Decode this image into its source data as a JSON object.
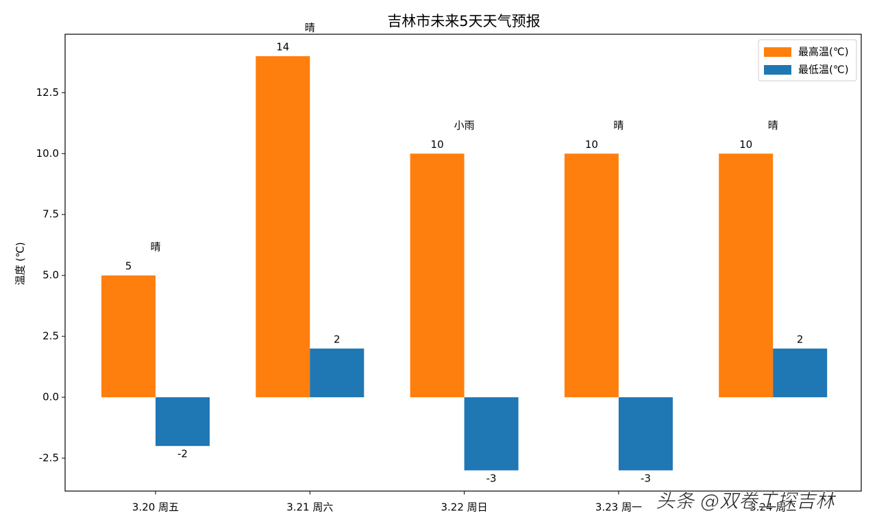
{
  "chart_data": {
    "type": "bar",
    "title": "吉林市未来5天天气预报",
    "y_label": "温度 (℃)",
    "categories": [
      "3.20 周五",
      "3.21 周六",
      "3.22 周日",
      "3.23 周一",
      "3.24 周二"
    ],
    "series": [
      {
        "name": "最高温(℃)",
        "color": "#ff7f0e",
        "values": [
          5,
          14,
          10,
          10,
          10
        ]
      },
      {
        "name": "最低温(℃)",
        "color": "#1f77b4",
        "values": [
          -2,
          2,
          -3,
          -3,
          2
        ]
      }
    ],
    "weather": [
      "晴",
      "晴",
      "小雨",
      "晴",
      "晴"
    ],
    "ylim": [
      -3.85,
      14.9
    ],
    "yticks": [
      -2.5,
      {
        "value": 0,
        "label": "0.0"
      },
      2.5,
      {
        "value": 5,
        "label": "5.0"
      },
      7.5,
      {
        "value": 10,
        "label": "10.0"
      },
      12.5
    ],
    "legend": "upper right",
    "watermark": "头条 @双卷工探吉林"
  }
}
